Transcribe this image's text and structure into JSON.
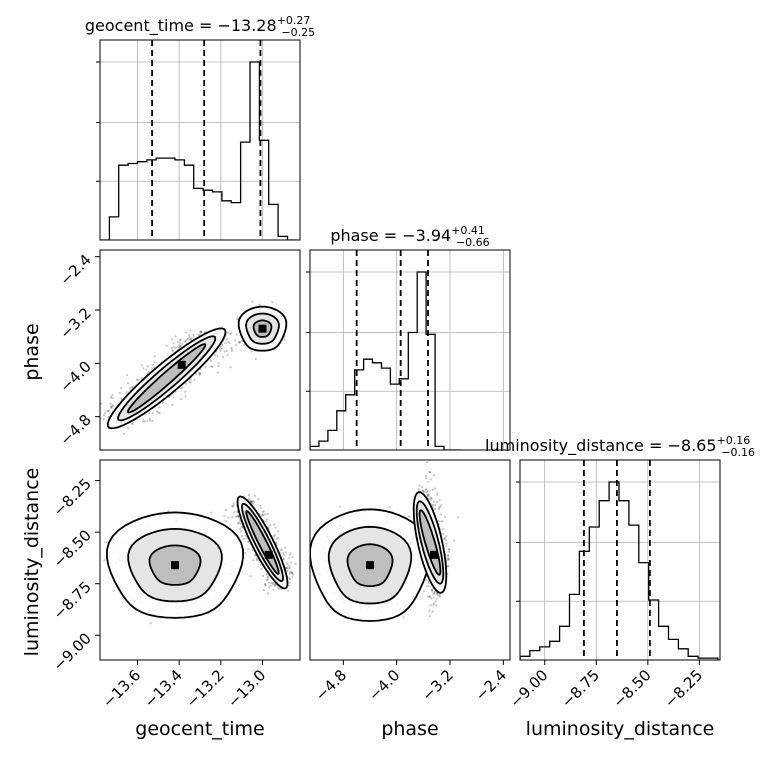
{
  "chart_data": {
    "type": "corner",
    "parameters": [
      {
        "name": "geocent_time",
        "title": {
          "prefix": "geocent_time = ",
          "median": "−13.28",
          "upper": "+0.27",
          "lower": "−0.25"
        },
        "quantiles": [
          -13.53,
          -13.28,
          -13.01
        ],
        "range": [
          -13.78,
          -12.82
        ],
        "ticks": [
          {
            "value": -13.6,
            "label": "−13.6"
          },
          {
            "value": -13.4,
            "label": "−13.4"
          },
          {
            "value": -13.2,
            "label": "−13.2"
          },
          {
            "value": -13.0,
            "label": "−13.0"
          }
        ],
        "histogram": {
          "edges": [
            -13.78,
            -13.735,
            -13.69,
            -13.645,
            -13.6,
            -13.555,
            -13.51,
            -13.465,
            -13.42,
            -13.375,
            -13.33,
            -13.285,
            -13.24,
            -13.195,
            -13.15,
            -13.105,
            -13.06,
            -13.015,
            -12.97,
            -12.925,
            -12.88,
            -12.835
          ],
          "counts": [
            0,
            0.13,
            0.42,
            0.43,
            0.44,
            0.45,
            0.46,
            0.46,
            0.45,
            0.42,
            0.29,
            0.28,
            0.27,
            0.22,
            0.21,
            0.55,
            1.0,
            0.56,
            0.2,
            0.02,
            0
          ]
        }
      },
      {
        "name": "phase",
        "title": {
          "prefix": "phase = ",
          "median": "−3.94",
          "upper": "+0.41",
          "lower": "−0.66"
        },
        "quantiles": [
          -4.6,
          -3.94,
          -3.53
        ],
        "range": [
          -5.3,
          -2.3
        ],
        "ticks": [
          {
            "value": -4.8,
            "label": "−4.8"
          },
          {
            "value": -4.0,
            "label": "−4.0"
          },
          {
            "value": -3.2,
            "label": "−3.2"
          },
          {
            "value": -2.4,
            "label": "−2.4"
          }
        ],
        "histogram": {
          "edges": [
            -5.3,
            -5.166,
            -5.032,
            -4.898,
            -4.764,
            -4.63,
            -4.496,
            -4.362,
            -4.228,
            -4.094,
            -3.96,
            -3.826,
            -3.692,
            -3.558,
            -3.424,
            -3.29,
            -3.156,
            -3.022
          ],
          "counts": [
            0.02,
            0.05,
            0.11,
            0.22,
            0.31,
            0.45,
            0.51,
            0.49,
            0.46,
            0.37,
            0.4,
            0.66,
            1.0,
            0.65,
            0.02,
            0,
            0
          ]
        }
      },
      {
        "name": "luminosity_distance",
        "title": {
          "prefix": "luminosity_distance = ",
          "median": "−8.65",
          "upper": "+0.16",
          "lower": "−0.16"
        },
        "quantiles": [
          -8.81,
          -8.65,
          -8.49
        ],
        "range": [
          -9.12,
          -8.15
        ],
        "ticks": [
          {
            "value": -9.0,
            "label": "−9.00"
          },
          {
            "value": -8.75,
            "label": "−8.75"
          },
          {
            "value": -8.5,
            "label": "−8.50"
          },
          {
            "value": -8.25,
            "label": "−8.25"
          }
        ],
        "histogram": {
          "edges": [
            -9.12,
            -9.072,
            -9.024,
            -8.976,
            -8.928,
            -8.88,
            -8.832,
            -8.784,
            -8.736,
            -8.688,
            -8.64,
            -8.592,
            -8.544,
            -8.496,
            -8.448,
            -8.4,
            -8.352,
            -8.304,
            -8.256,
            -8.208,
            -8.16
          ],
          "counts": [
            0.02,
            0.05,
            0.07,
            0.1,
            0.18,
            0.35,
            0.58,
            0.71,
            0.85,
            0.95,
            0.85,
            0.72,
            0.52,
            0.32,
            0.18,
            0.11,
            0.06,
            0.02,
            0.01,
            0.01
          ]
        }
      }
    ],
    "contours_2d": [
      {
        "x": "geocent_time",
        "y": "phase",
        "clusters": [
          {
            "start": [
              -13.7,
              -4.9
            ],
            "end": [
              -13.22,
              -3.55
            ],
            "width": 0.14
          },
          {
            "center": [
              -13.0,
              -3.48
            ],
            "radius": [
              0.07,
              0.22
            ]
          }
        ]
      },
      {
        "x": "geocent_time",
        "y": "luminosity_distance",
        "clusters": [
          {
            "center": [
              -13.42,
              -8.66
            ],
            "radius": [
              0.2,
              0.17
            ]
          },
          {
            "start": [
              -13.1,
              -8.35
            ],
            "end": [
              -12.9,
              -8.75
            ],
            "width": 0.07
          }
        ]
      },
      {
        "x": "phase",
        "y": "luminosity_distance",
        "clusters": [
          {
            "center": [
              -4.4,
              -8.66
            ],
            "radius": [
              0.55,
              0.18
            ]
          },
          {
            "start": [
              -3.7,
              -8.35
            ],
            "end": [
              -3.3,
              -8.75
            ],
            "width": 0.2
          }
        ]
      }
    ],
    "grid": true,
    "axis_labels": [
      "geocent_time",
      "phase",
      "luminosity_distance"
    ]
  }
}
